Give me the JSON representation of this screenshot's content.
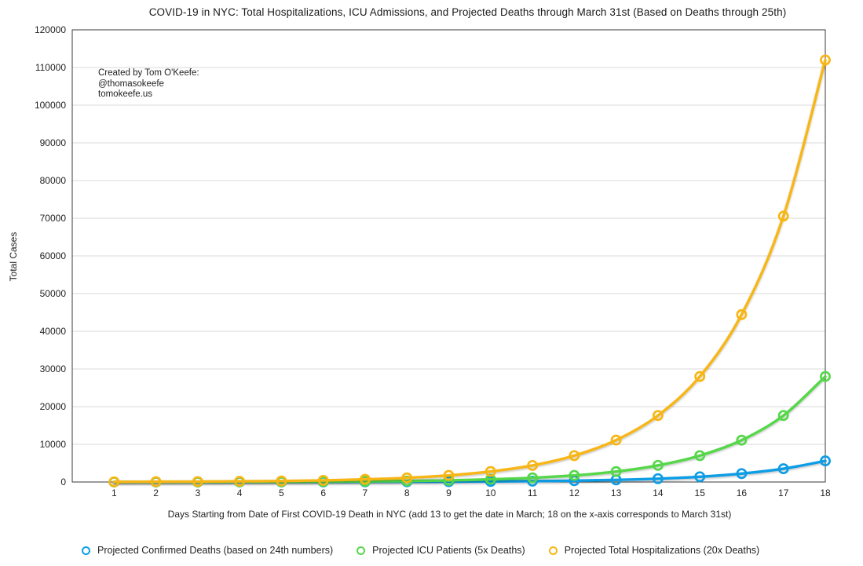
{
  "annotation": {
    "line1": "Created by Tom O'Keefe:",
    "line2": "@thomasokeefe",
    "line3": "tomokeefe.us"
  },
  "chart_data": {
    "type": "line",
    "title": "COVID-19 in NYC: Total Hospitalizations, ICU Admissions, and Projected Deaths through March 31st (Based on Deaths through 25th)",
    "xlabel": "Days Starting from Date of First COVID-19 Death in NYC (add 13 to get the date in March; 18 on the x-axis corresponds to March 31st)",
    "ylabel": "Total Cases",
    "x": [
      1,
      2,
      3,
      4,
      5,
      6,
      7,
      8,
      9,
      10,
      11,
      12,
      13,
      14,
      15,
      16,
      17,
      18
    ],
    "xlim": [
      0,
      18
    ],
    "ylim": [
      0,
      120000
    ],
    "ytick_step": 10000,
    "grid": true,
    "legend_position": "bottom",
    "marker": "open-circle",
    "series": [
      {
        "name": "Projected Confirmed Deaths (based on 24th numbers)",
        "color": "#0E9DE5",
        "values": [
          2,
          4,
          6,
          9,
          14,
          22,
          35,
          55,
          88,
          140,
          220,
          350,
          556,
          882,
          1400,
          2222,
          3528,
          5600
        ]
      },
      {
        "name": "Projected ICU Patients (5x Deaths)",
        "color": "#55D749",
        "values": [
          10,
          20,
          30,
          45,
          70,
          110,
          175,
          275,
          440,
          700,
          1100,
          1750,
          2780,
          4410,
          7000,
          11110,
          17640,
          28000
        ]
      },
      {
        "name": "Projected Total Hospitalizations (20x Deaths)",
        "color": "#F7B613",
        "values": [
          40,
          80,
          120,
          180,
          280,
          440,
          700,
          1100,
          1760,
          2800,
          4400,
          7000,
          11120,
          17640,
          28000,
          44440,
          70560,
          112000
        ]
      }
    ]
  },
  "colors": {
    "gridline": "#D9D9D9",
    "frame": "#3A3A3A",
    "tick_text": "#222222"
  }
}
